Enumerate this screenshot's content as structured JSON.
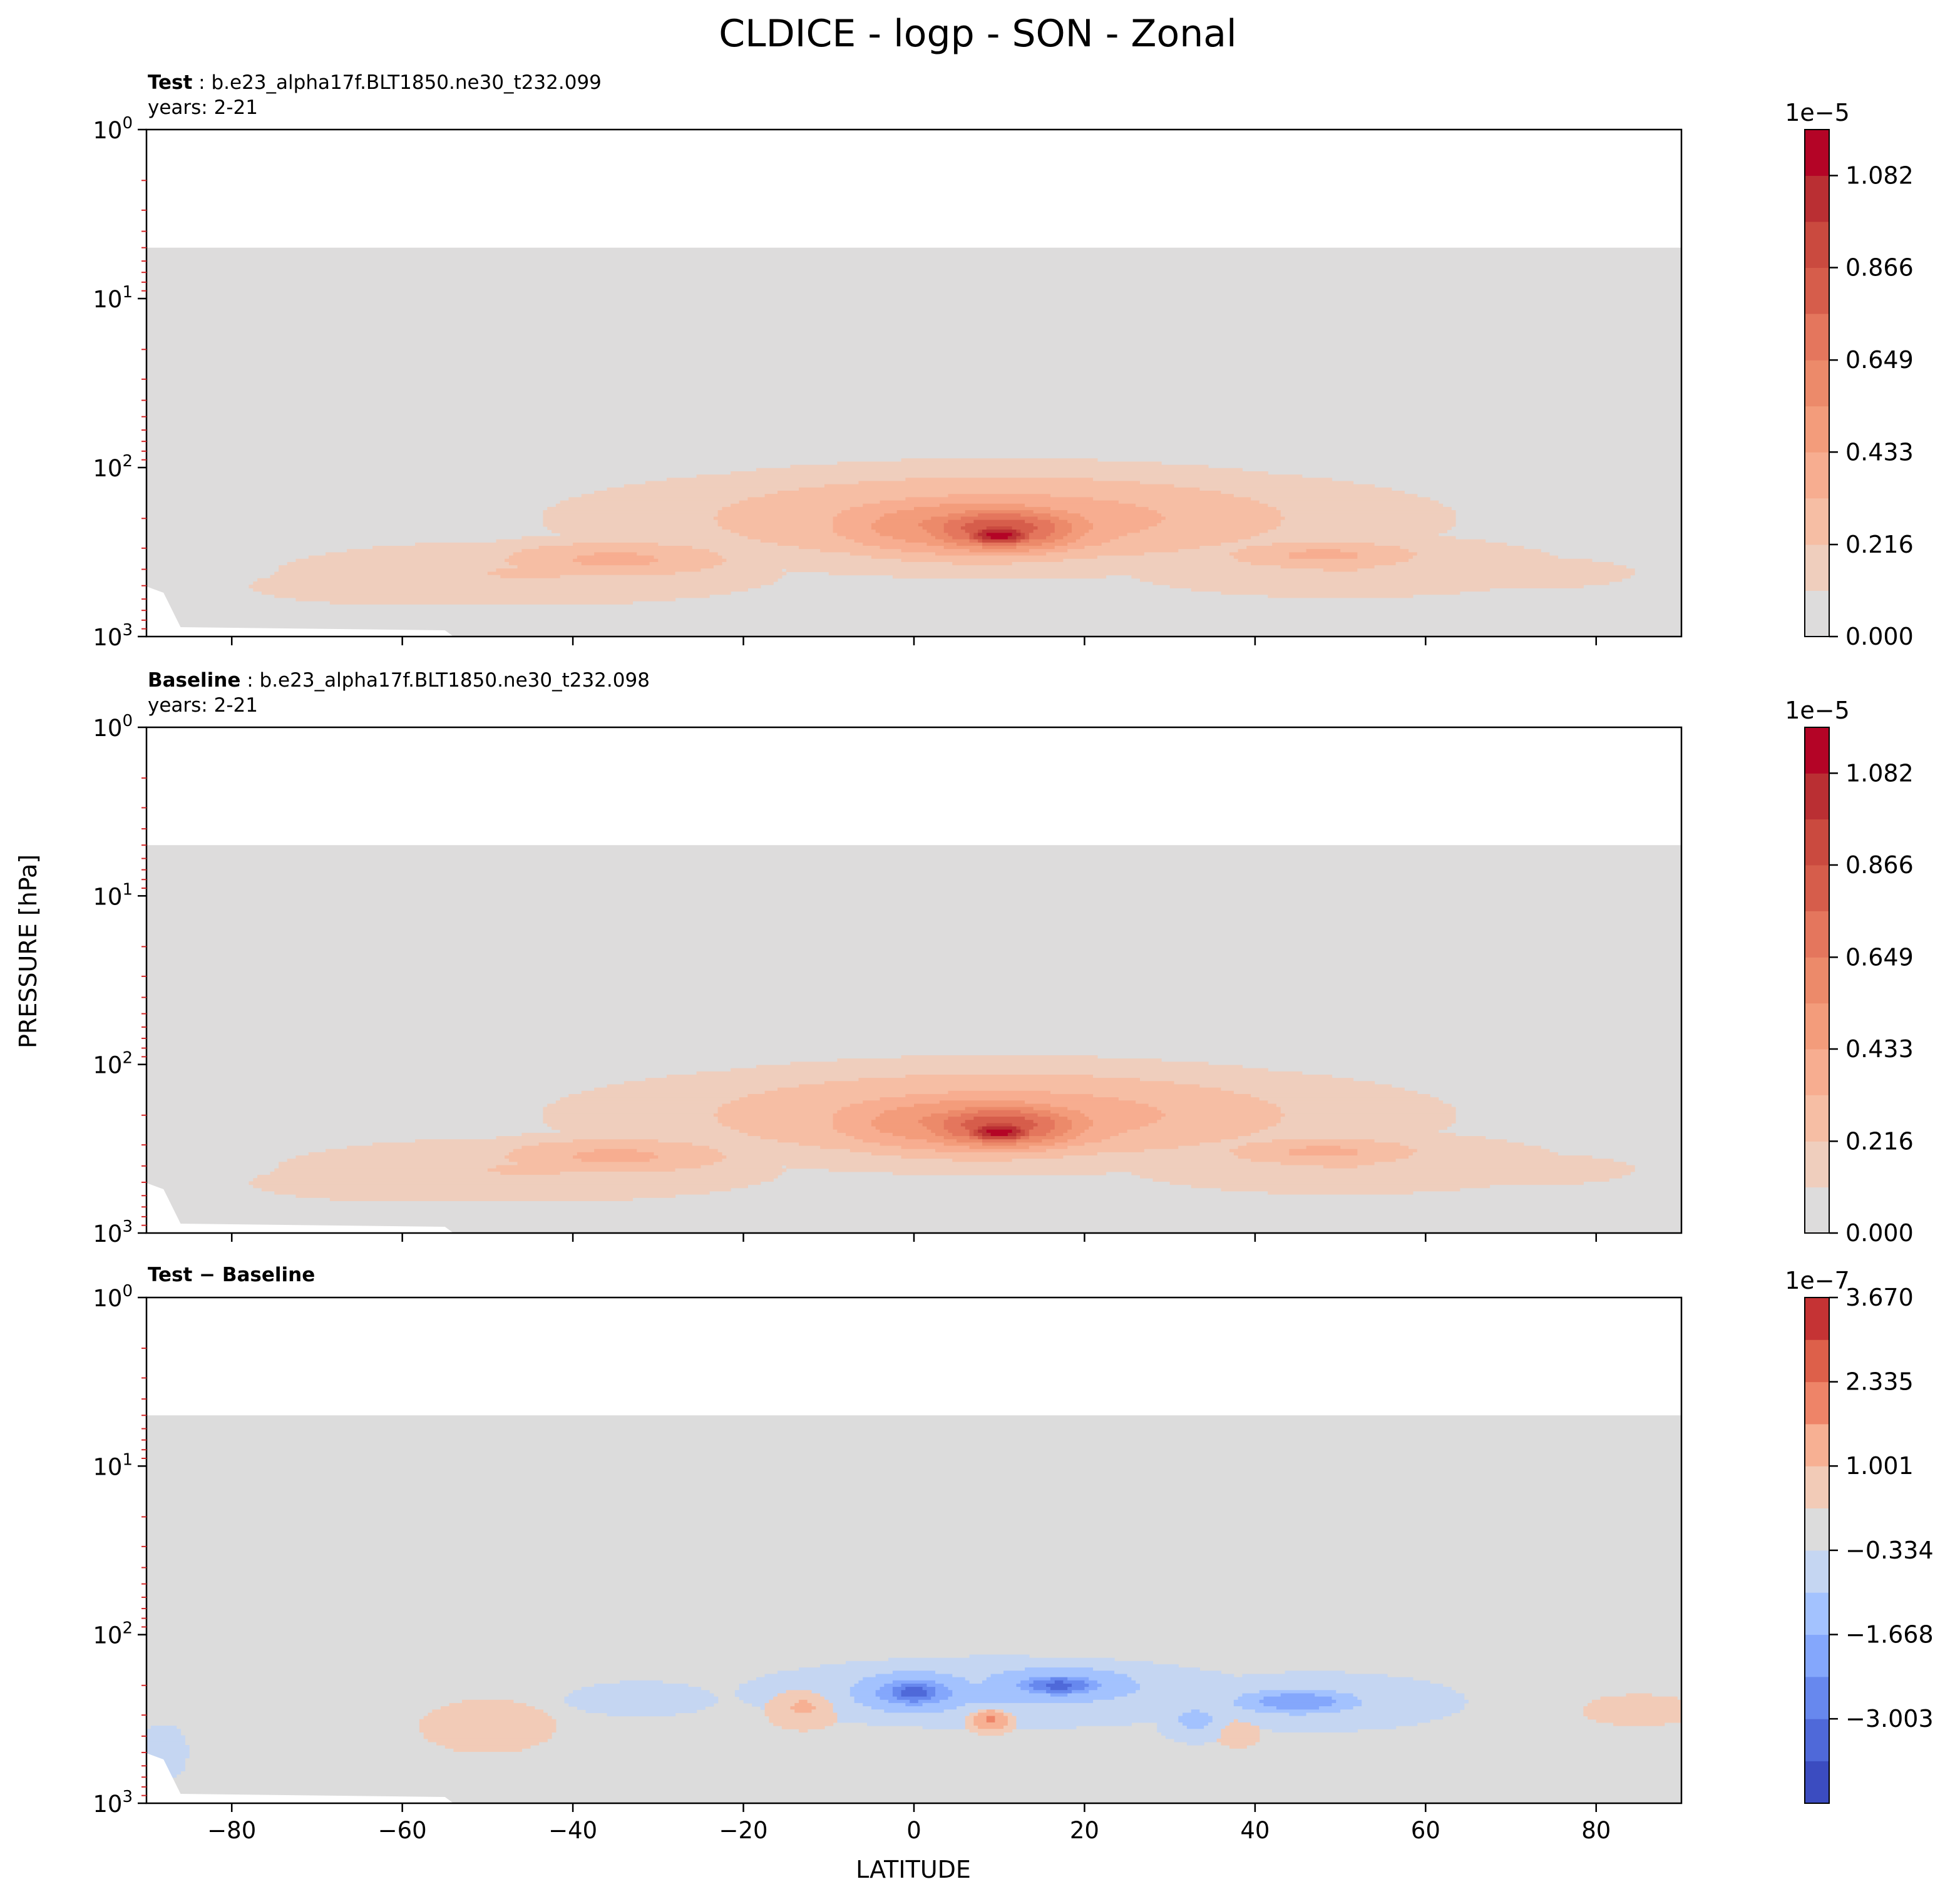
{
  "figure": {
    "title": "CLDICE - logp - SON - Zonal",
    "ylabel": "PRESSURE [hPa]",
    "xlabel": "LATITUDE"
  },
  "chart_data": [
    {
      "type": "heatmap",
      "name_bold": "Test",
      "name_rest": " : b.e23_alpha17f.BLT1850.ne30_t232.099",
      "subtitle": "years: 2-21",
      "xlim": [
        -90,
        90
      ],
      "ylim": [
        1000,
        1
      ],
      "y_scale": "log",
      "x_ticks": [
        -80,
        -60,
        -40,
        -20,
        0,
        20,
        40,
        60,
        80
      ],
      "y_ticks": [
        {
          "base": "10",
          "exp": "0",
          "value": 1
        },
        {
          "base": "10",
          "exp": "1",
          "value": 10
        },
        {
          "base": "10",
          "exp": "2",
          "value": 100
        },
        {
          "base": "10",
          "exp": "3",
          "value": 1000
        }
      ],
      "data_top_hpa": 5,
      "colorbar": {
        "exponent_label": "1e−5",
        "vmin": 0.0,
        "vmax": 1.19,
        "tick_values": [
          0.0,
          0.216,
          0.433,
          0.649,
          0.866,
          1.082
        ],
        "tick_labels": [
          "0.000",
          "0.216",
          "0.433",
          "0.649",
          "0.866",
          "1.082"
        ],
        "levels": [
          0,
          0.108,
          0.216,
          0.325,
          0.433,
          0.541,
          0.649,
          0.758,
          0.866,
          0.974,
          1.082,
          1.19
        ],
        "colors": [
          "#dddcdc",
          "#efcebd",
          "#f6bea4",
          "#f7ad90",
          "#f39c7b",
          "#ec8a6a",
          "#e4765d",
          "#d65d4b",
          "#ca4a3f",
          "#ba2f33",
          "#b40426"
        ]
      },
      "features": [
        {
          "lat": 10,
          "p": 250,
          "value": 1.15,
          "wlat": 4,
          "wlogp": 0.06
        },
        {
          "lat": 10,
          "p": 230,
          "value": 0.85,
          "wlat": 9,
          "wlogp": 0.12
        },
        {
          "lat": 8,
          "p": 220,
          "value": 0.6,
          "wlat": 16,
          "wlogp": 0.16
        },
        {
          "lat": 10,
          "p": 200,
          "value": 0.4,
          "wlat": 30,
          "wlogp": 0.22
        },
        {
          "lat": 10,
          "p": 200,
          "value": 0.22,
          "wlat": 45,
          "wlogp": 0.28
        },
        {
          "lat": -35,
          "p": 350,
          "value": 0.35,
          "wlat": 13,
          "wlogp": 0.1
        },
        {
          "lat": -45,
          "p": 420,
          "value": 0.22,
          "wlat": 25,
          "wlogp": 0.16
        },
        {
          "lat": -60,
          "p": 500,
          "value": 0.15,
          "wlat": 22,
          "wlogp": 0.14
        },
        {
          "lat": 48,
          "p": 330,
          "value": 0.35,
          "wlat": 11,
          "wlogp": 0.08
        },
        {
          "lat": 50,
          "p": 380,
          "value": 0.22,
          "wlat": 22,
          "wlogp": 0.16
        },
        {
          "lat": 70,
          "p": 420,
          "value": 0.15,
          "wlat": 18,
          "wlogp": 0.12
        }
      ]
    },
    {
      "type": "heatmap",
      "name_bold": "Baseline",
      "name_rest": " : b.e23_alpha17f.BLT1850.ne30_t232.098",
      "subtitle": "years: 2-21",
      "xlim": [
        -90,
        90
      ],
      "ylim": [
        1000,
        1
      ],
      "y_scale": "log",
      "x_ticks": [
        -80,
        -60,
        -40,
        -20,
        0,
        20,
        40,
        60,
        80
      ],
      "y_ticks": [
        {
          "base": "10",
          "exp": "0",
          "value": 1
        },
        {
          "base": "10",
          "exp": "1",
          "value": 10
        },
        {
          "base": "10",
          "exp": "2",
          "value": 100
        },
        {
          "base": "10",
          "exp": "3",
          "value": 1000
        }
      ],
      "data_top_hpa": 5,
      "colorbar": {
        "exponent_label": "1e−5",
        "vmin": 0.0,
        "vmax": 1.19,
        "tick_values": [
          0.0,
          0.216,
          0.433,
          0.649,
          0.866,
          1.082
        ],
        "tick_labels": [
          "0.000",
          "0.216",
          "0.433",
          "0.649",
          "0.866",
          "1.082"
        ],
        "levels": [
          0,
          0.108,
          0.216,
          0.325,
          0.433,
          0.541,
          0.649,
          0.758,
          0.866,
          0.974,
          1.082,
          1.19
        ],
        "colors": [
          "#dddcdc",
          "#efcebd",
          "#f6bea4",
          "#f7ad90",
          "#f39c7b",
          "#ec8a6a",
          "#e4765d",
          "#d65d4b",
          "#ca4a3f",
          "#ba2f33",
          "#b40426"
        ]
      },
      "features": [
        {
          "lat": 10,
          "p": 250,
          "value": 1.15,
          "wlat": 4,
          "wlogp": 0.06
        },
        {
          "lat": 10,
          "p": 230,
          "value": 0.85,
          "wlat": 9,
          "wlogp": 0.12
        },
        {
          "lat": 8,
          "p": 220,
          "value": 0.6,
          "wlat": 16,
          "wlogp": 0.16
        },
        {
          "lat": 10,
          "p": 200,
          "value": 0.4,
          "wlat": 30,
          "wlogp": 0.22
        },
        {
          "lat": 10,
          "p": 200,
          "value": 0.22,
          "wlat": 45,
          "wlogp": 0.28
        },
        {
          "lat": -35,
          "p": 350,
          "value": 0.35,
          "wlat": 13,
          "wlogp": 0.1
        },
        {
          "lat": -45,
          "p": 420,
          "value": 0.22,
          "wlat": 25,
          "wlogp": 0.16
        },
        {
          "lat": -60,
          "p": 500,
          "value": 0.15,
          "wlat": 22,
          "wlogp": 0.14
        },
        {
          "lat": 48,
          "p": 330,
          "value": 0.35,
          "wlat": 11,
          "wlogp": 0.08
        },
        {
          "lat": 50,
          "p": 380,
          "value": 0.22,
          "wlat": 22,
          "wlogp": 0.16
        },
        {
          "lat": 70,
          "p": 420,
          "value": 0.15,
          "wlat": 18,
          "wlogp": 0.12
        }
      ]
    },
    {
      "type": "heatmap",
      "name_bold": "Test − Baseline",
      "name_rest": "",
      "subtitle": "",
      "xlim": [
        -90,
        90
      ],
      "ylim": [
        1000,
        1
      ],
      "y_scale": "log",
      "x_ticks": [
        -80,
        -60,
        -40,
        -20,
        0,
        20,
        40,
        60,
        80
      ],
      "y_ticks": [
        {
          "base": "10",
          "exp": "0",
          "value": 1
        },
        {
          "base": "10",
          "exp": "1",
          "value": 10
        },
        {
          "base": "10",
          "exp": "2",
          "value": 100
        },
        {
          "base": "10",
          "exp": "3",
          "value": 1000
        }
      ],
      "data_top_hpa": 5,
      "colorbar": {
        "exponent_label": "1e−7",
        "vmin": -4.34,
        "vmax": 3.67,
        "tick_values": [
          -3.003,
          -1.668,
          -0.334,
          1.001,
          2.335,
          3.67
        ],
        "tick_labels": [
          "−3.003",
          "−1.668",
          "−0.334",
          "1.001",
          "2.335",
          "3.670"
        ],
        "levels": [
          -4.34,
          -3.67,
          -3.003,
          -2.336,
          -1.668,
          -1.001,
          -0.334,
          0.334,
          1.001,
          1.668,
          2.335,
          3.003,
          3.67
        ],
        "colors": [
          "#3b4cc0",
          "#4f69d9",
          "#6788ee",
          "#84a7fc",
          "#a3c2fe",
          "#c5d6f2",
          "#dcdcdc",
          "#f2cbb7",
          "#f7b093",
          "#ee8468",
          "#dd604a",
          "#c53334"
        ]
      },
      "features": [
        {
          "lat": 0,
          "p": 220,
          "value": -3.5,
          "wlat": 3,
          "wlogp": 0.06
        },
        {
          "lat": 0,
          "p": 220,
          "value": -2.2,
          "wlat": 6,
          "wlogp": 0.1
        },
        {
          "lat": 17,
          "p": 200,
          "value": -3.3,
          "wlat": 4,
          "wlogp": 0.05
        },
        {
          "lat": 17,
          "p": 200,
          "value": -2.0,
          "wlat": 8,
          "wlogp": 0.09
        },
        {
          "lat": 10,
          "p": 220,
          "value": -1.1,
          "wlat": 20,
          "wlogp": 0.14
        },
        {
          "lat": 45,
          "p": 250,
          "value": -2.2,
          "wlat": 6,
          "wlogp": 0.06
        },
        {
          "lat": 47,
          "p": 250,
          "value": -1.0,
          "wlat": 12,
          "wlogp": 0.12
        },
        {
          "lat": -32,
          "p": 240,
          "value": -1.0,
          "wlat": 6,
          "wlogp": 0.07
        },
        {
          "lat": 33,
          "p": 320,
          "value": -1.2,
          "wlat": 3,
          "wlogp": 0.09
        },
        {
          "lat": 9,
          "p": 320,
          "value": 1.8,
          "wlat": 2,
          "wlogp": 0.05
        },
        {
          "lat": -13,
          "p": 270,
          "value": 1.1,
          "wlat": 3,
          "wlogp": 0.09
        },
        {
          "lat": -50,
          "p": 350,
          "value": 0.8,
          "wlat": 6,
          "wlogp": 0.12
        },
        {
          "lat": 38,
          "p": 380,
          "value": 0.8,
          "wlat": 2,
          "wlogp": 0.07
        },
        {
          "lat": 85,
          "p": 280,
          "value": 0.8,
          "wlat": 5,
          "wlogp": 0.07
        },
        {
          "lat": -88,
          "p": 500,
          "value": -0.9,
          "wlat": 2,
          "wlogp": 0.12
        }
      ]
    }
  ]
}
